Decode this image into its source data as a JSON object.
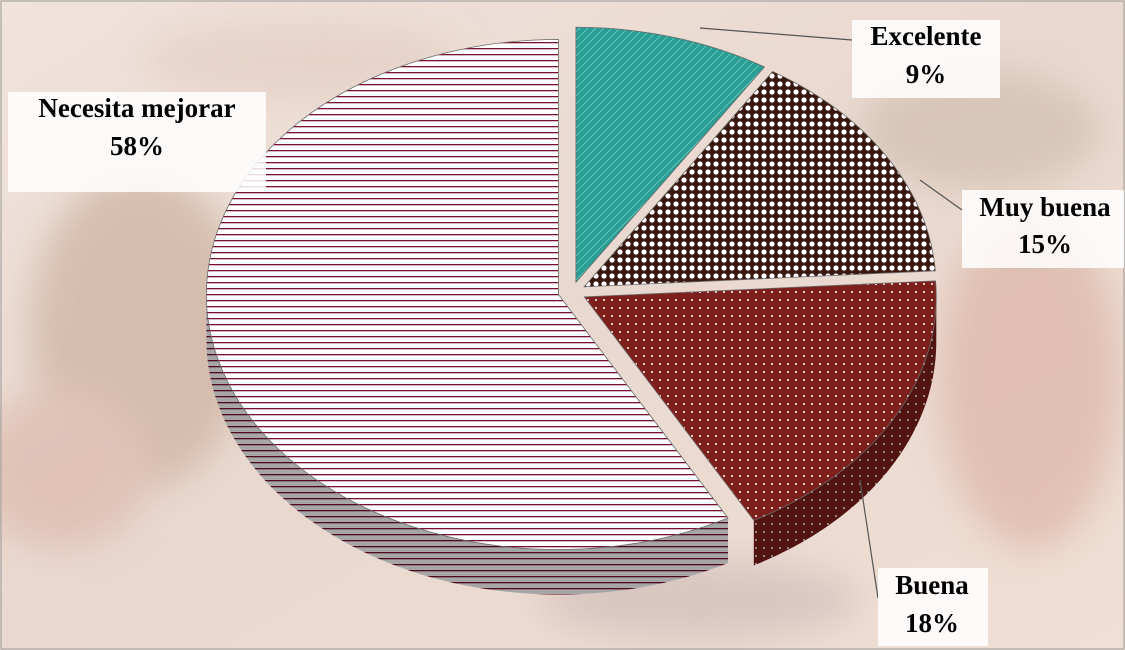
{
  "chart_data": {
    "type": "pie",
    "categories": [
      "Excelente",
      "Muy buena",
      "Buena",
      "Necesita mejorar"
    ],
    "values": [
      9,
      15,
      18,
      58
    ],
    "value_labels": [
      "9%",
      "15%",
      "18%",
      "58%"
    ],
    "colors": [
      "#2a9d94",
      "#3a1812",
      "#7d1f1b",
      "#7a1030"
    ]
  }
}
